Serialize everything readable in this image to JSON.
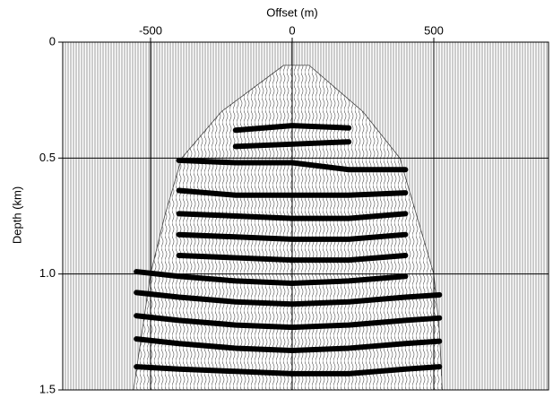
{
  "chart_data": {
    "type": "wiggle",
    "x_label": "Offset (m)",
    "y_label": "Depth (km)",
    "xlim": [
      -810,
      905
    ],
    "ylim": [
      0,
      1.5
    ],
    "xticks": [
      -500,
      0,
      500
    ],
    "yticks": [
      0,
      0.5,
      {
        "value": 1,
        "label": "1.0"
      },
      1.5
    ],
    "grid": true,
    "color": "#000000",
    "x": [
      -550,
      -400,
      -200,
      0,
      200,
      400,
      520
    ],
    "aperture": {
      "depth": [
        0.1,
        0.3,
        0.5,
        0.75,
        1.0,
        1.25,
        1.5
      ],
      "left": [
        -30,
        -250,
        -390,
        -450,
        -500,
        -530,
        -560
      ],
      "right": [
        60,
        250,
        380,
        440,
        500,
        520,
        530
      ]
    },
    "series": [
      {
        "values": [
          null,
          null,
          0.38,
          0.36,
          0.37,
          null,
          null
        ]
      },
      {
        "values": [
          null,
          null,
          0.45,
          0.44,
          0.43,
          null,
          null
        ]
      },
      {
        "values": [
          null,
          0.51,
          0.52,
          0.52,
          0.55,
          0.55,
          null
        ]
      },
      {
        "values": [
          null,
          0.64,
          0.66,
          0.66,
          0.66,
          0.65,
          null
        ]
      },
      {
        "values": [
          null,
          0.74,
          0.75,
          0.76,
          0.76,
          0.74,
          null
        ]
      },
      {
        "values": [
          null,
          0.83,
          0.84,
          0.85,
          0.85,
          0.83,
          null
        ]
      },
      {
        "values": [
          null,
          0.92,
          0.93,
          0.94,
          0.94,
          0.92,
          null
        ]
      },
      {
        "values": [
          0.99,
          1.01,
          1.03,
          1.04,
          1.03,
          1.01,
          null
        ]
      },
      {
        "values": [
          1.08,
          1.1,
          1.12,
          1.13,
          1.12,
          1.1,
          1.09
        ]
      },
      {
        "values": [
          1.18,
          1.2,
          1.22,
          1.23,
          1.22,
          1.2,
          1.19
        ]
      },
      {
        "values": [
          1.28,
          1.3,
          1.32,
          1.33,
          1.32,
          1.3,
          1.29
        ]
      },
      {
        "values": [
          1.4,
          1.41,
          1.42,
          1.43,
          1.43,
          1.41,
          1.4
        ]
      }
    ]
  }
}
